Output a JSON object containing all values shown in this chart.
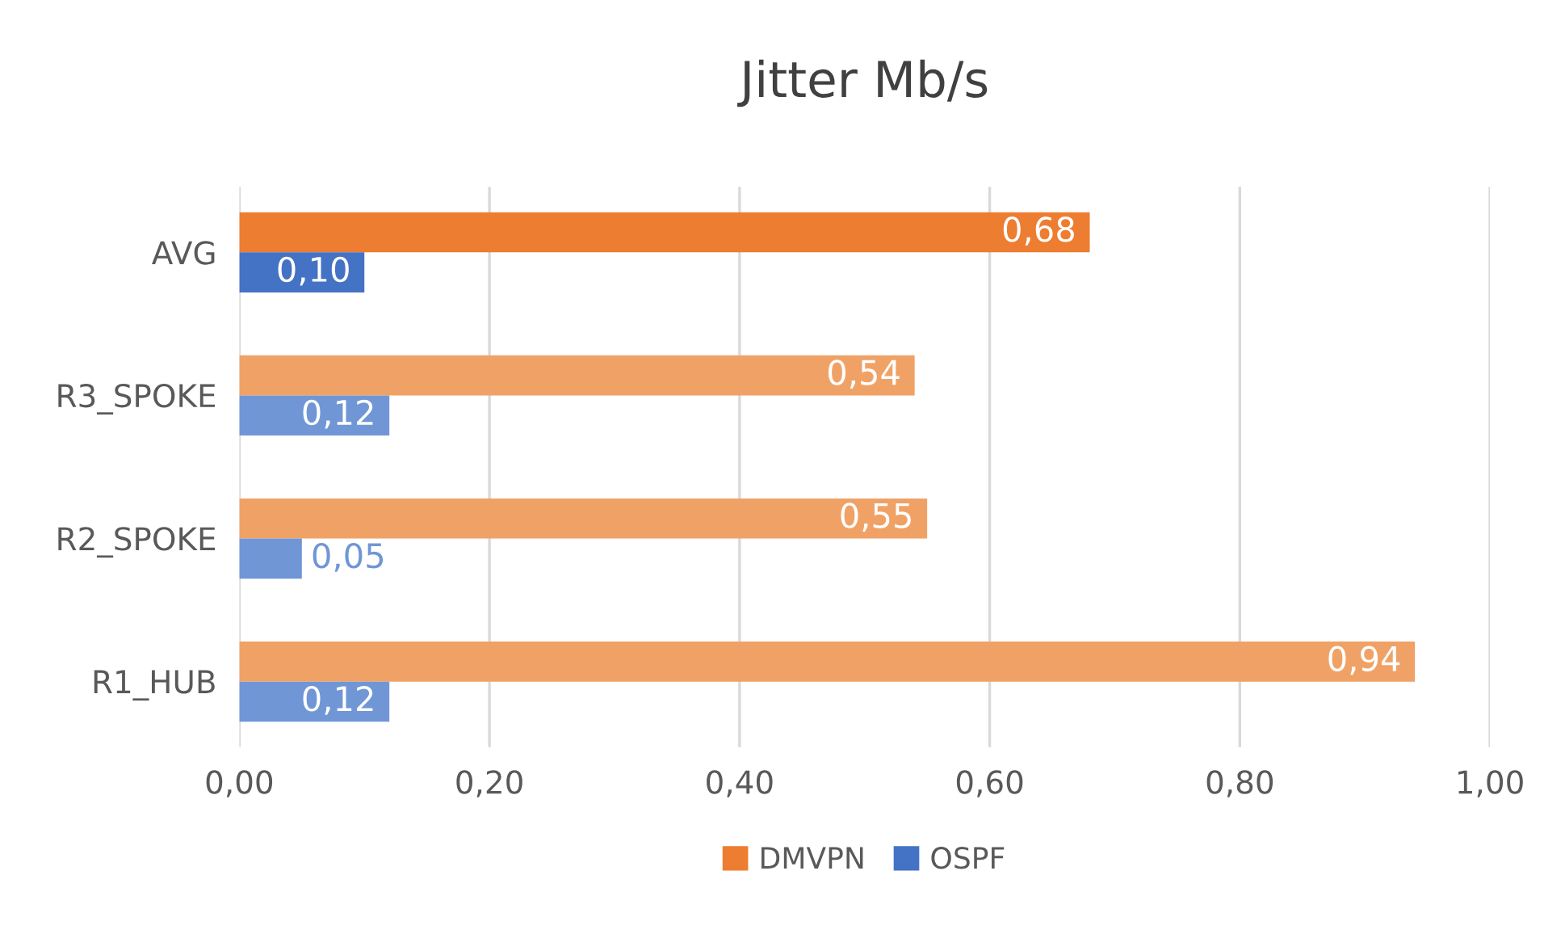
{
  "chart_data": {
    "type": "bar",
    "orientation": "horizontal",
    "title": "Jitter Mb/s",
    "categories": [
      "AVG",
      "R3_SPOKE",
      "R2_SPOKE",
      "R1_HUB"
    ],
    "series": [
      {
        "name": "DMVPN",
        "color": "#ed7d31",
        "colors": [
          "#ed7d31",
          "#f0a266",
          "#f0a266",
          "#f0a266"
        ],
        "values": [
          0.68,
          0.54,
          0.55,
          0.94
        ],
        "value_labels": [
          "0,68",
          "0,54",
          "0,55",
          "0,94"
        ]
      },
      {
        "name": "OSPF",
        "color": "#4472c4",
        "colors": [
          "#4472c4",
          "#7096d6",
          "#7096d6",
          "#7096d6"
        ],
        "values": [
          0.1,
          0.12,
          0.05,
          0.12
        ],
        "value_labels": [
          "0,10",
          "0,12",
          "0,05",
          "0,12"
        ]
      }
    ],
    "xlim": [
      0,
      1.0
    ],
    "xticks": [
      {
        "value": 0,
        "label": "0,00"
      },
      {
        "value": 0.2,
        "label": "0,20"
      },
      {
        "value": 0.4,
        "label": "0,40"
      },
      {
        "value": 0.6,
        "label": "0,60"
      },
      {
        "value": 0.8,
        "label": "0,80"
      },
      {
        "value": 1.0,
        "label": "1,00"
      }
    ],
    "grid": "x",
    "legend": "bottom"
  }
}
